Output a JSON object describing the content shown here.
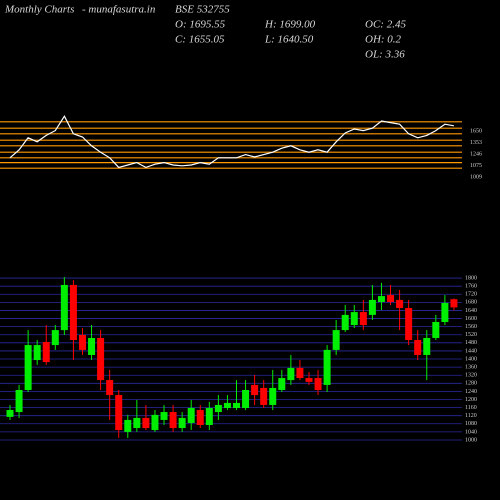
{
  "header": {
    "title": "Monthly Charts",
    "site": "- munafasutra.in",
    "symbol": "BSE 532755",
    "stats": [
      "O: 1695.55",
      "H: 1699.00",
      "OC: 2.45",
      "C: 1655.05",
      "L: 1640.50",
      "OH: 0.2",
      "OL: 3.36"
    ]
  },
  "chart_data": [
    {
      "type": "line",
      "color": "#ffffff",
      "level_color": "#ff9900",
      "ylim": [
        0,
        100
      ],
      "levels": [
        79,
        71,
        64,
        56,
        49,
        41,
        34,
        28,
        21
      ],
      "level_labels": [
        "1650",
        "1353",
        "1246",
        "1075",
        "1009"
      ],
      "values": [
        34,
        44,
        59,
        54,
        62,
        68,
        86,
        64,
        60,
        49,
        41,
        34,
        22,
        25,
        28,
        22,
        26,
        28,
        25,
        24,
        25,
        28,
        26,
        34,
        34,
        34,
        38,
        35,
        38,
        41,
        46,
        49,
        44,
        41,
        44,
        41,
        54,
        65,
        70,
        68,
        71,
        80,
        78,
        76,
        64,
        59,
        62,
        68,
        76,
        74
      ]
    },
    {
      "type": "candlestick",
      "up_color": "#00ee00",
      "down_color": "#ff0000",
      "grid_color": "#2a2aa0",
      "ylim": [
        990,
        1830
      ],
      "yticks": [
        1000,
        1040,
        1080,
        1120,
        1160,
        1200,
        1240,
        1280,
        1320,
        1360,
        1400,
        1440,
        1480,
        1520,
        1560,
        1600,
        1640,
        1680,
        1720,
        1760,
        1800
      ],
      "open": [
        1114,
        1138,
        1247,
        1395,
        1484,
        1469,
        1543,
        1766,
        1519,
        1420,
        1504,
        1296,
        1222,
        1040,
        1059,
        1109,
        1049,
        1099,
        1138,
        1059,
        1084,
        1148,
        1074,
        1138,
        1158,
        1158,
        1158,
        1272,
        1257,
        1173,
        1247,
        1296,
        1356,
        1306,
        1306,
        1272,
        1445,
        1543,
        1568,
        1632,
        1618,
        1682,
        1716,
        1692,
        1652,
        1494,
        1420,
        1504,
        1583,
        1695.55
      ],
      "high": [
        1173,
        1272,
        1543,
        1494,
        1568,
        1568,
        1805,
        1790,
        1553,
        1568,
        1543,
        1346,
        1247,
        1124,
        1198,
        1173,
        1148,
        1173,
        1173,
        1138,
        1198,
        1173,
        1188,
        1222,
        1222,
        1296,
        1296,
        1321,
        1296,
        1346,
        1346,
        1420,
        1395,
        1336,
        1346,
        1469,
        1593,
        1667,
        1667,
        1692,
        1766,
        1776,
        1766,
        1741,
        1692,
        1543,
        1543,
        1618,
        1716,
        1699.0
      ],
      "low": [
        1099,
        1109,
        1237,
        1371,
        1371,
        1445,
        1519,
        1395,
        1420,
        1395,
        1247,
        1099,
        1010,
        1010,
        1040,
        1049,
        1040,
        1074,
        1040,
        1040,
        1049,
        1059,
        1049,
        1099,
        1148,
        1148,
        1148,
        1173,
        1158,
        1148,
        1237,
        1272,
        1296,
        1272,
        1222,
        1237,
        1420,
        1534,
        1553,
        1543,
        1593,
        1642,
        1667,
        1543,
        1469,
        1395,
        1296,
        1494,
        1568,
        1640.5
      ],
      "close": [
        1148,
        1247,
        1469,
        1469,
        1385,
        1543,
        1766,
        1494,
        1445,
        1504,
        1296,
        1222,
        1049,
        1099,
        1109,
        1059,
        1124,
        1138,
        1059,
        1109,
        1158,
        1074,
        1158,
        1173,
        1183,
        1183,
        1247,
        1222,
        1173,
        1257,
        1306,
        1356,
        1306,
        1287,
        1247,
        1445,
        1543,
        1618,
        1632,
        1568,
        1692,
        1711,
        1682,
        1652,
        1494,
        1420,
        1504,
        1583,
        1677,
        1655.05
      ]
    }
  ]
}
